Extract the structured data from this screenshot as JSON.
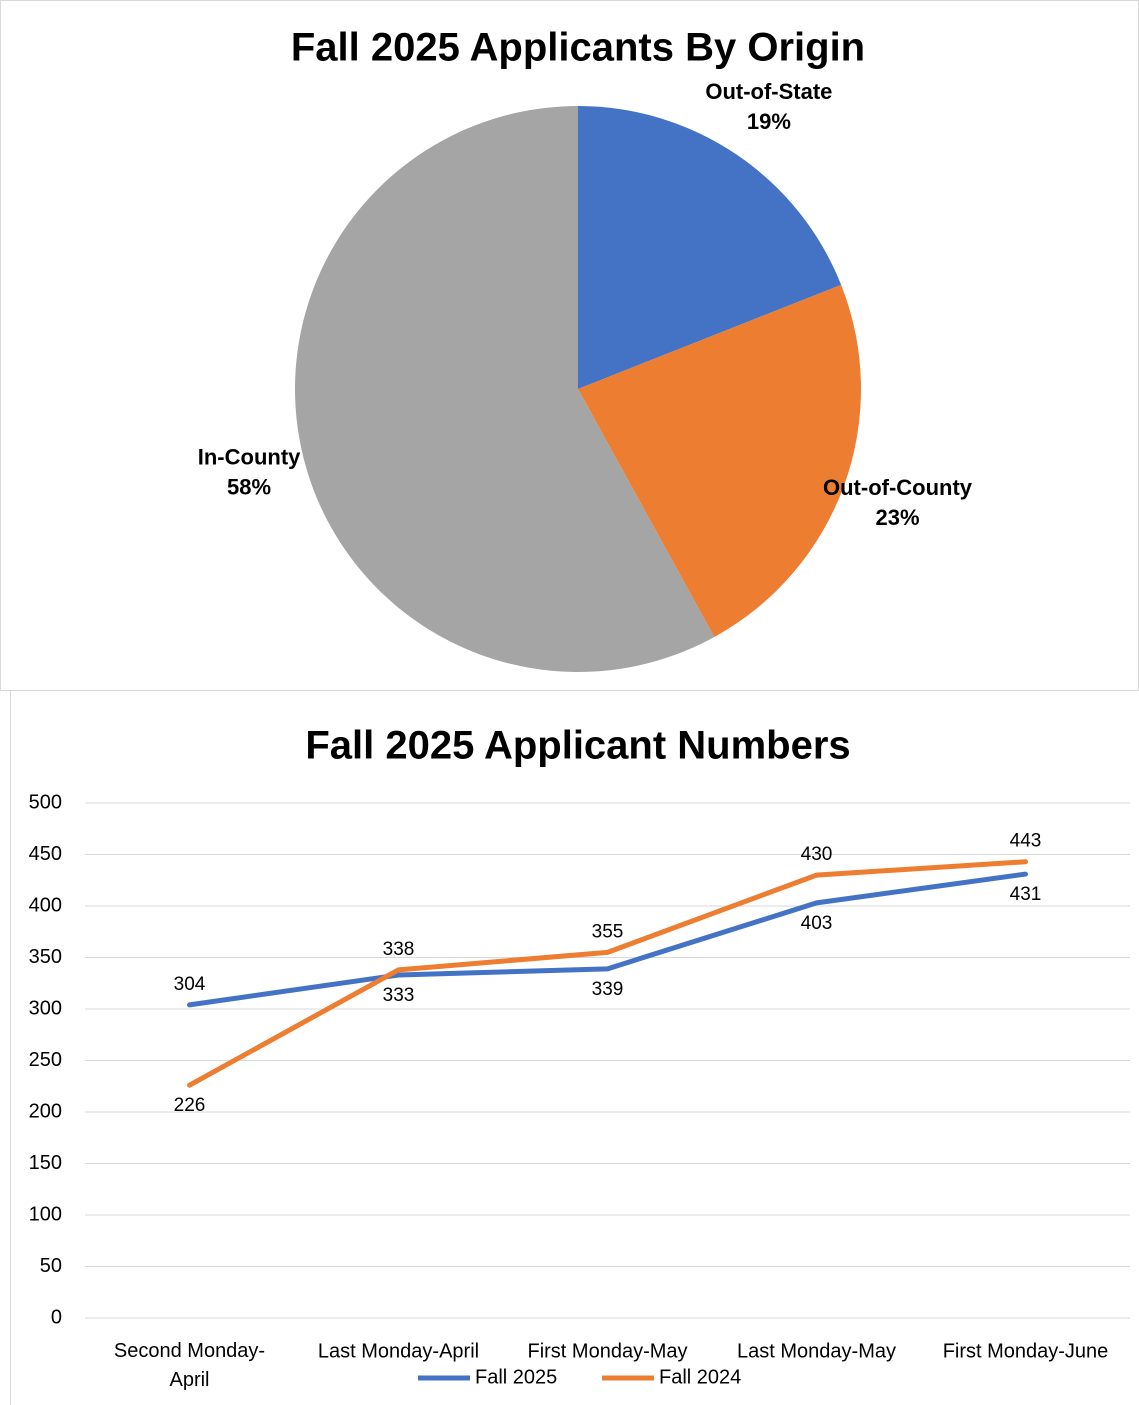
{
  "chart_data": [
    {
      "type": "pie",
      "title": "Fall 2025 Applicants By Origin",
      "categories": [
        "Out-of-State",
        "Out-of-County",
        "In-County"
      ],
      "values": [
        19,
        23,
        58
      ],
      "value_labels": [
        "19%",
        "23%",
        "58%"
      ],
      "colors": [
        "#4472c4",
        "#ed7d31",
        "#a5a5a5"
      ]
    },
    {
      "type": "line",
      "title": "Fall 2025 Applicant Numbers",
      "categories": [
        "Second Monday-April",
        "Last Monday-April",
        "First Monday-May",
        "Last Monday-May",
        "First Monday-June"
      ],
      "series": [
        {
          "name": "Fall 2025",
          "color": "#4472c4",
          "values": [
            304,
            333,
            339,
            403,
            431
          ]
        },
        {
          "name": "Fall 2024",
          "color": "#ed7d31",
          "values": [
            226,
            338,
            355,
            430,
            443
          ]
        }
      ],
      "ylim": [
        0,
        500
      ],
      "yticks": [
        0,
        50,
        100,
        150,
        200,
        250,
        300,
        350,
        400,
        450,
        500
      ],
      "grid": true,
      "legend": "bottom"
    }
  ]
}
